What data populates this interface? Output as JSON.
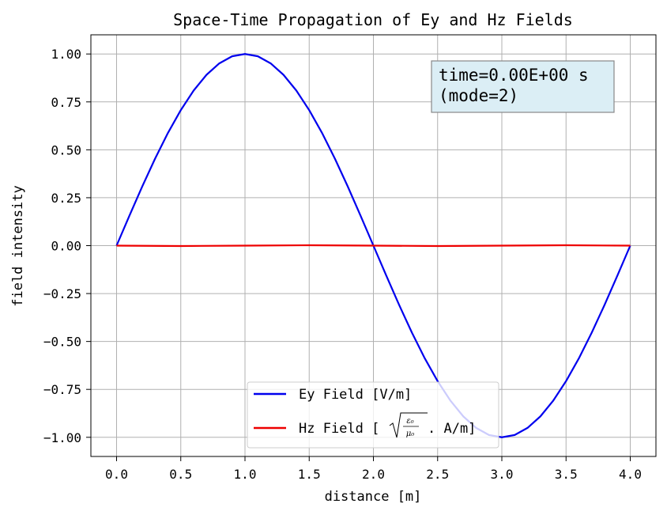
{
  "chart_data": {
    "type": "line",
    "title": "Space-Time Propagation of Ey and Hz Fields",
    "xlabel": "distance [m]",
    "ylabel": "field intensity",
    "xlim": [
      -0.2,
      4.2
    ],
    "ylim": [
      -1.1,
      1.1
    ],
    "xticks": [
      0.0,
      0.5,
      1.0,
      1.5,
      2.0,
      2.5,
      3.0,
      3.5,
      4.0
    ],
    "xtick_labels": [
      "0.0",
      "0.5",
      "1.0",
      "1.5",
      "2.0",
      "2.5",
      "3.0",
      "3.5",
      "4.0"
    ],
    "yticks": [
      1.0,
      0.75,
      0.5,
      0.25,
      0.0,
      -0.25,
      -0.5,
      -0.75,
      -1.0
    ],
    "ytick_labels": [
      "1.00",
      "0.75",
      "0.50",
      "0.25",
      "0.00",
      "−0.25",
      "−0.50",
      "−0.75",
      "−1.00"
    ],
    "grid": true,
    "legend_position": "lower-center",
    "annotation": {
      "line1": "time=0.00E+00 s",
      "line2": "(mode=2)",
      "background": "#dbeef5",
      "border": "#888888"
    },
    "series": [
      {
        "name": "Ey Field [V/m]",
        "color": "#0000ee",
        "x": [
          0.0,
          0.1,
          0.2,
          0.3,
          0.4,
          0.5,
          0.6,
          0.7,
          0.8,
          0.9,
          1.0,
          1.1,
          1.2,
          1.3,
          1.4,
          1.5,
          1.6,
          1.7,
          1.8,
          1.9,
          2.0,
          2.1,
          2.2,
          2.3,
          2.4,
          2.5,
          2.6,
          2.7,
          2.8,
          2.9,
          3.0,
          3.1,
          3.2,
          3.3,
          3.4,
          3.5,
          3.6,
          3.7,
          3.8,
          3.9,
          4.0
        ],
        "values": [
          0.0,
          0.156,
          0.309,
          0.454,
          0.588,
          0.707,
          0.809,
          0.891,
          0.951,
          0.988,
          1.0,
          0.988,
          0.951,
          0.891,
          0.809,
          0.707,
          0.588,
          0.454,
          0.309,
          0.156,
          0.0,
          -0.156,
          -0.309,
          -0.454,
          -0.588,
          -0.707,
          -0.809,
          -0.891,
          -0.951,
          -0.988,
          -1.0,
          -0.988,
          -0.951,
          -0.891,
          -0.809,
          -0.707,
          -0.588,
          -0.454,
          -0.309,
          -0.156,
          0.0
        ]
      },
      {
        "name_prefix": "Hz Field [",
        "name_suffix": " . A/m]",
        "name_fraction": {
          "numerator": "ε₀",
          "denominator": "μ₀"
        },
        "color": "#ee0000",
        "x": [
          0.0,
          0.5,
          1.0,
          1.5,
          2.0,
          2.5,
          3.0,
          3.5,
          4.0
        ],
        "values": [
          0.0,
          -0.002,
          0.0,
          0.002,
          0.0,
          -0.002,
          0.0,
          0.002,
          0.0
        ]
      }
    ]
  }
}
